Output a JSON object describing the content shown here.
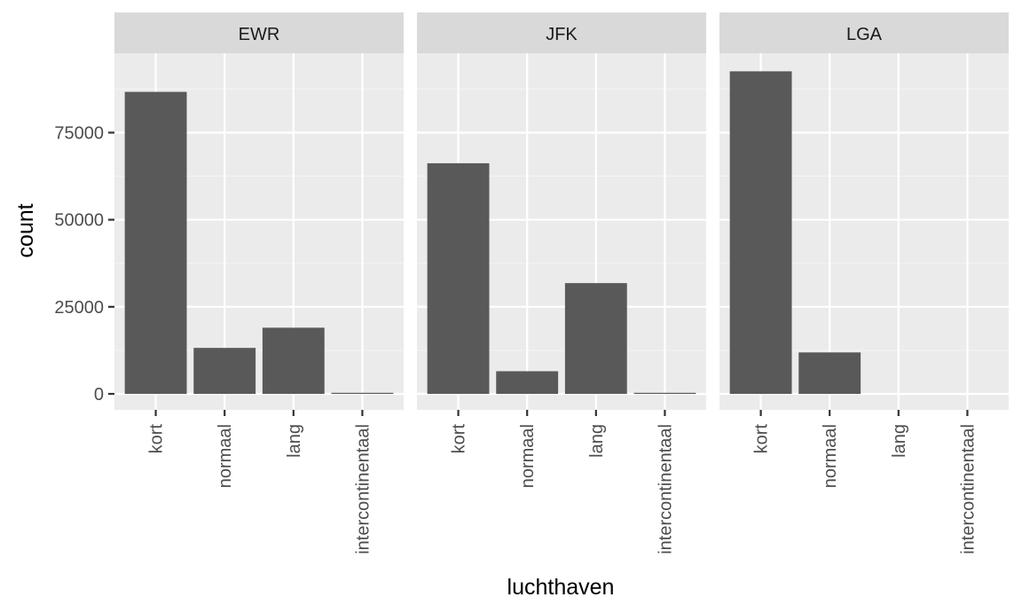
{
  "chart_data": {
    "type": "bar",
    "facet_by": "origin",
    "xlabel": "luchthaven",
    "ylabel": "count",
    "categories": [
      "kort",
      "normaal",
      "lang",
      "intercontinentaal"
    ],
    "ylim": [
      0,
      97000
    ],
    "yticks": [
      0,
      25000,
      50000,
      75000
    ],
    "ytick_labels": [
      "0",
      "25000",
      "50000",
      "75000"
    ],
    "grid": true,
    "legend": "none",
    "colors": {
      "bar": "#595959",
      "panel_bg": "#ebebeb",
      "strip_bg": "#d9d9d9",
      "grid_major": "#ffffff",
      "grid_minor": "#f4f4f4",
      "tick": "#333333"
    },
    "panels": [
      {
        "label": "EWR",
        "values": [
          86700,
          13200,
          19000,
          300
        ]
      },
      {
        "label": "JFK",
        "values": [
          66200,
          6500,
          31800,
          250
        ]
      },
      {
        "label": "LGA",
        "values": [
          92600,
          11900,
          0,
          0
        ]
      }
    ]
  }
}
